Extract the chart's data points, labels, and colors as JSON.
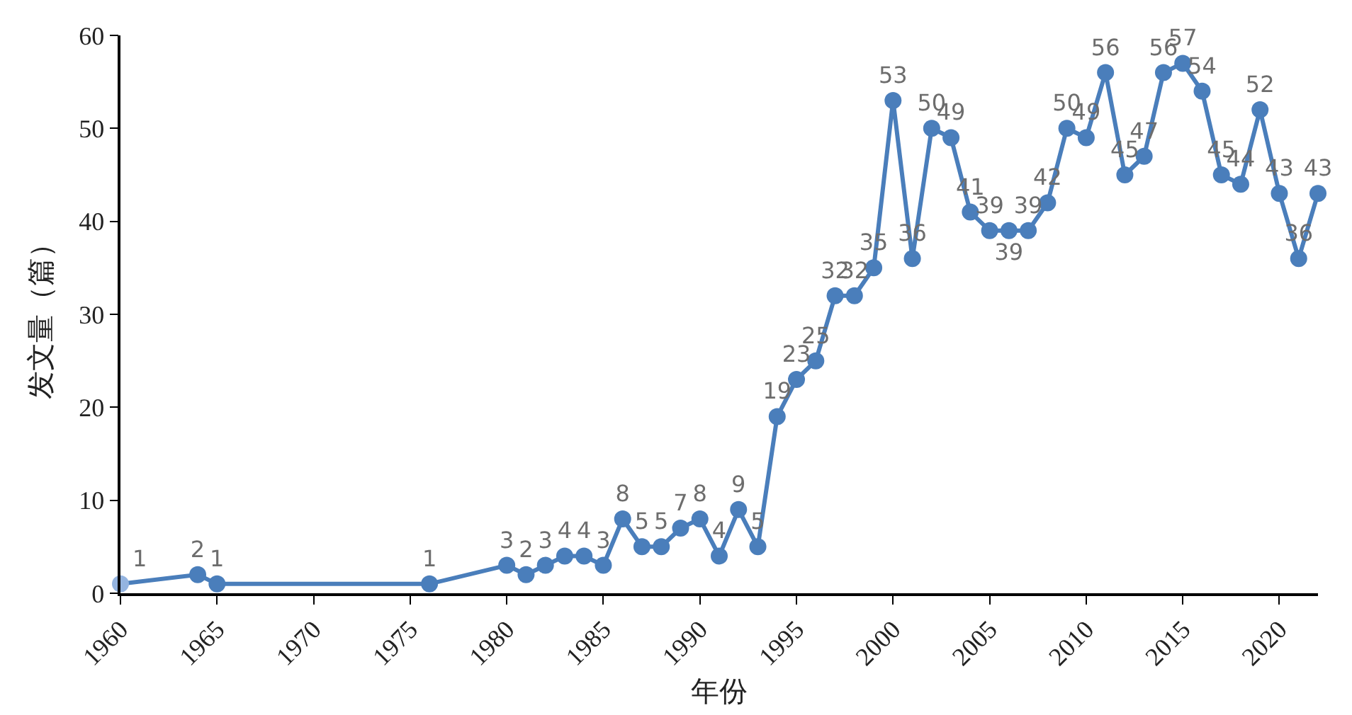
{
  "chart_data": {
    "type": "line",
    "xlabel": "年份",
    "ylabel": "发文量（篇）",
    "x": [
      1960,
      1964,
      1965,
      1976,
      1980,
      1981,
      1982,
      1983,
      1984,
      1985,
      1986,
      1987,
      1988,
      1989,
      1990,
      1991,
      1992,
      1993,
      1994,
      1995,
      1996,
      1997,
      1998,
      1999,
      2000,
      2001,
      2002,
      2003,
      2004,
      2005,
      2006,
      2007,
      2008,
      2009,
      2010,
      2011,
      2012,
      2013,
      2014,
      2015,
      2016,
      2017,
      2018,
      2019,
      2020,
      2021,
      2022
    ],
    "series": [
      {
        "color": "#4a7ebb",
        "colors": [
          "#94b4e0",
          "#4a7ebb",
          "#4a7ebb",
          "#4a7ebb",
          "#4a7ebb",
          "#4a7ebb",
          "#4a7ebb",
          "#4a7ebb",
          "#4a7ebb",
          "#4a7ebb",
          "#4a7ebb",
          "#4a7ebb",
          "#4a7ebb",
          "#4a7ebb",
          "#4a7ebb",
          "#4a7ebb",
          "#4a7ebb",
          "#4a7ebb",
          "#4a7ebb",
          "#4a7ebb",
          "#4a7ebb",
          "#4a7ebb",
          "#4a7ebb",
          "#4a7ebb",
          "#4a7ebb",
          "#4a7ebb",
          "#4a7ebb",
          "#4a7ebb",
          "#4a7ebb",
          "#4a7ebb",
          "#4a7ebb",
          "#4a7ebb",
          "#4a7ebb",
          "#4a7ebb",
          "#4a7ebb",
          "#4a7ebb",
          "#4a7ebb",
          "#4a7ebb",
          "#4a7ebb",
          "#4a7ebb",
          "#4a7ebb",
          "#4a7ebb",
          "#4a7ebb",
          "#4a7ebb",
          "#4a7ebb",
          "#4a7ebb",
          "#4a7ebb"
        ],
        "values": [
          1,
          2,
          1,
          1,
          3,
          2,
          3,
          4,
          4,
          3,
          8,
          5,
          5,
          7,
          8,
          4,
          9,
          5,
          19,
          23,
          25,
          32,
          32,
          35,
          53,
          36,
          50,
          49,
          41,
          39,
          39,
          39,
          42,
          50,
          49,
          56,
          45,
          47,
          56,
          57,
          54,
          45,
          44,
          52,
          43,
          36,
          43
        ]
      }
    ],
    "xlim": [
      1960,
      2022
    ],
    "xticks": [
      1960,
      1965,
      1970,
      1975,
      1980,
      1985,
      1990,
      1995,
      2000,
      2005,
      2010,
      2015,
      2020
    ],
    "ylim": [
      0,
      60
    ],
    "yticks": [
      0,
      10,
      20,
      30,
      40,
      50,
      60
    ],
    "data_labels": true,
    "marker": "circle",
    "line_style": "solid"
  }
}
